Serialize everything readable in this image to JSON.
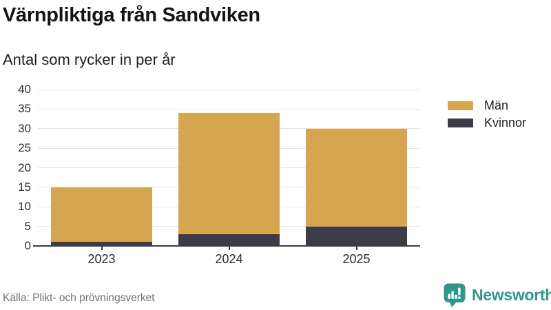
{
  "header": {
    "title": "Värnpliktiga från Sandviken",
    "subtitle": "Antal som rycker in per år"
  },
  "chart_data": {
    "type": "bar",
    "stacked": true,
    "title": "Värnpliktiga från Sandviken",
    "subtitle": "Antal som rycker in per år",
    "categories": [
      "2023",
      "2024",
      "2025"
    ],
    "series": [
      {
        "name": "Män",
        "color": "#d6a550",
        "values": [
          14,
          31,
          25
        ]
      },
      {
        "name": "Kvinnor",
        "color": "#3e3b49",
        "values": [
          1,
          3,
          5
        ]
      }
    ],
    "stack_order_bottom_up": [
      "Kvinnor",
      "Män"
    ],
    "stacked_totals": [
      15,
      34,
      30
    ],
    "xlabel": "",
    "ylabel": "",
    "ylim": [
      0,
      40
    ],
    "yticks": [
      0,
      5,
      10,
      15,
      20,
      25,
      30,
      35,
      40
    ],
    "grid": true,
    "legend_position": "right"
  },
  "footer": {
    "source": "Källa: Plikt- och prövningsverket",
    "brand": "Newsworthy"
  },
  "icons": {
    "brand_logo": "speech-bubble-bar-chart-exclamation-icon"
  },
  "colors": {
    "accent_gold": "#d6a550",
    "accent_dark": "#3e3b49",
    "brand_teal": "#2f968e",
    "grid": "#e4e4e4",
    "axis": "#3e3b49",
    "muted_text": "#6f6f6f"
  }
}
